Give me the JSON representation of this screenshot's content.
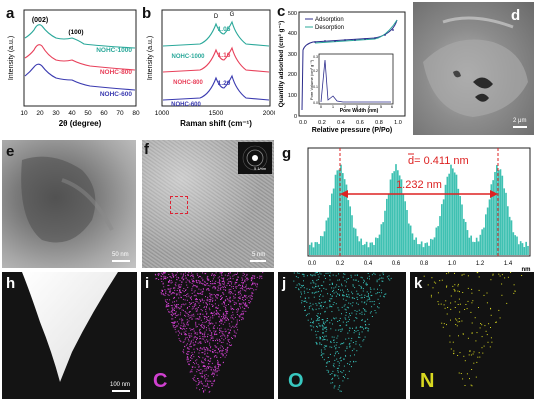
{
  "panel_labels": {
    "a": "a",
    "b": "b",
    "c": "c",
    "d": "d",
    "e": "e",
    "f": "f",
    "g": "g",
    "h": "h",
    "i": "i",
    "j": "j",
    "k": "k"
  },
  "panel_a": {
    "xlabel": "2θ (degree)",
    "ylabel": "Intensity (a.u.)",
    "x_ticks": [
      "10",
      "20",
      "30",
      "40",
      "50",
      "60",
      "70",
      "80"
    ],
    "peak_labels": [
      "(002)",
      "(100)"
    ],
    "series": [
      {
        "name": "NOHC-1000",
        "color": "#2aa89a"
      },
      {
        "name": "NOHC-800",
        "color": "#e8405a"
      },
      {
        "name": "NOHC-600",
        "color": "#3a3ab0"
      }
    ]
  },
  "panel_b": {
    "xlabel": "Raman shift (cm⁻¹)",
    "ylabel": "Intensity (a.u.)",
    "x_ticks": [
      "1000",
      "1500",
      "2000"
    ],
    "band_labels": [
      "D",
      "G"
    ],
    "series": [
      {
        "name": "NOHC-1000",
        "ratio": "1.05",
        "color": "#2aa89a"
      },
      {
        "name": "NOHC-800",
        "ratio": "1.16",
        "color": "#e8405a"
      },
      {
        "name": "NOHC-600",
        "ratio": "1.20",
        "color": "#3a3ab0"
      }
    ]
  },
  "panel_c": {
    "xlabel": "Relative pressure (P/Po)",
    "ylabel": "Quantity adsorbed (cm³ g⁻¹)",
    "x_ticks": [
      "0.0",
      "0.2",
      "0.4",
      "0.6",
      "0.8",
      "1.0"
    ],
    "y_ticks": [
      "0",
      "100",
      "200",
      "300",
      "400",
      "500"
    ],
    "legend": [
      {
        "name": "Adsorption",
        "color": "#2c2c8c"
      },
      {
        "name": "Desorption",
        "color": "#2aa89a"
      }
    ],
    "inset": {
      "xlabel": "Pore Width  (nm)",
      "ylabel": "Pore Volume (cm³ g⁻¹)",
      "x_ticks": [
        "0",
        "1",
        "2",
        "3",
        "4",
        "5",
        "6"
      ],
      "y_ticks": [
        "0.0",
        "0.1",
        "0.2",
        "0.3"
      ]
    }
  },
  "panel_d": {
    "scalebar": "2 μm"
  },
  "panel_e": {
    "scalebar": "50 nm"
  },
  "panel_f": {
    "scalebar": "5 nm",
    "inset_scalebar": "5 1/nm"
  },
  "panel_g": {
    "x_ticks": [
      "0.0",
      "0.2",
      "0.4",
      "0.6",
      "0.8",
      "1.0",
      "1.2",
      "1.4"
    ],
    "xlabel": "nm",
    "d_label": "d= 0.411 nm",
    "span_label": "1.232 nm",
    "bar_color": "#3fc1b2"
  },
  "panel_h": {
    "scalebar": "100 nm"
  },
  "elements": [
    {
      "symbol": "C",
      "color": "#d040d0"
    },
    {
      "symbol": "O",
      "color": "#38c8c0"
    },
    {
      "symbol": "N",
      "color": "#d8d820"
    }
  ]
}
